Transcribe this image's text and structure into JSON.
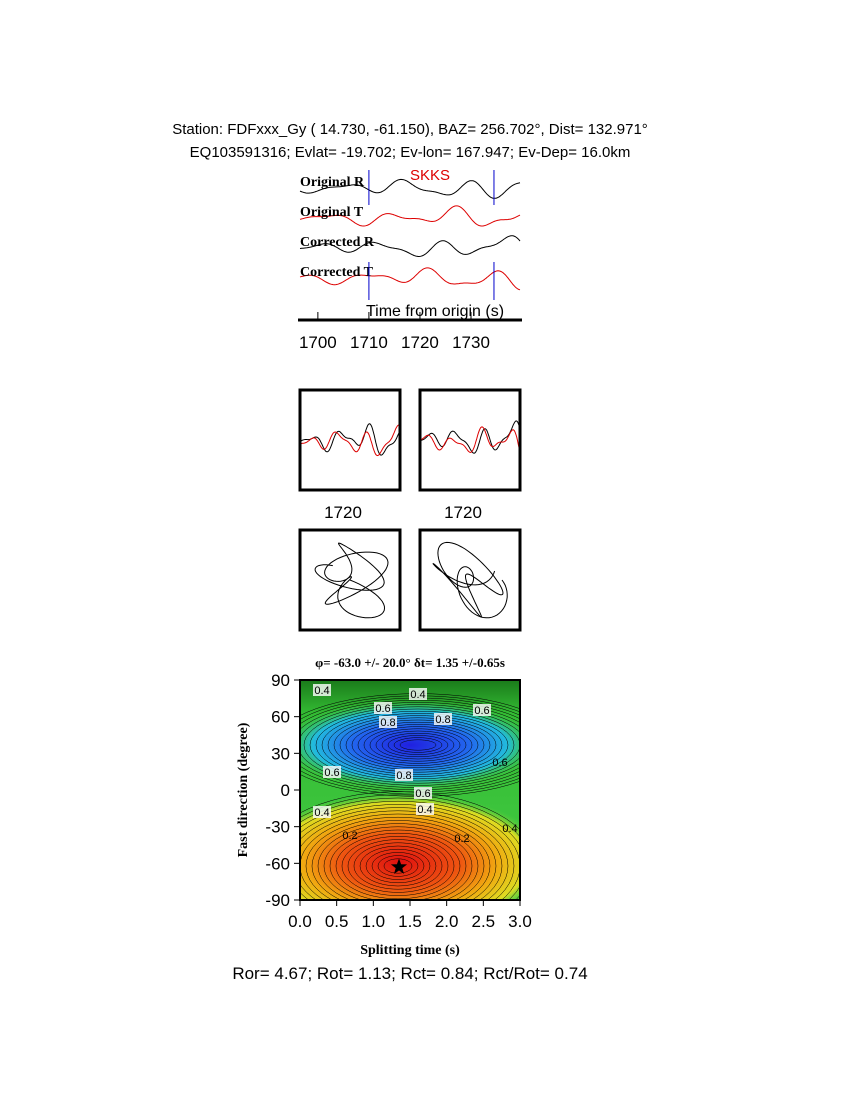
{
  "header": {
    "line1": "Station: FDFxxx_Gy (  14.730,  -61.150), BAZ=  256.702°, Dist=  132.971°",
    "line2": "EQ103591316; Evlat= -19.702; Ev-lon= 167.947; Ev-Dep= 16.0km"
  },
  "traces": {
    "phase": "SKKS",
    "labels": [
      "Original R",
      "Original T",
      "Corrected R",
      "Corrected T"
    ],
    "xlabel": "Time from origin (s)",
    "xlim": [
      1696.5,
      1739.6
    ],
    "xticks": [
      1700,
      1710,
      1720,
      1730
    ],
    "window": [
      1710,
      1734.5
    ]
  },
  "panels": {
    "xticks": [
      1720,
      1720
    ]
  },
  "contour": {
    "title": "φ= -63.0 +/- 20.0° δt= 1.35 +/-0.65s",
    "xlabel": "Splitting time (s)",
    "ylabel": "Fast direction (degree)",
    "xlim": [
      0,
      3
    ],
    "ylim": [
      -90,
      90
    ],
    "xticks": [
      {
        "value": 0,
        "label": "0.0"
      },
      {
        "value": 0.5,
        "label": "0.5"
      },
      {
        "value": 1,
        "label": "1.0"
      },
      {
        "value": 1.5,
        "label": "1.5"
      },
      {
        "value": 2,
        "label": "2.0"
      },
      {
        "value": 2.5,
        "label": "2.5"
      },
      {
        "value": 3,
        "label": "3.0"
      }
    ],
    "yticks": [
      -90,
      -60,
      -30,
      0,
      30,
      60,
      90
    ],
    "best": [
      1.35,
      -63
    ],
    "level_labels": [
      "0.4",
      "0.4",
      "0.6",
      "0.6",
      "0.6",
      "0.8",
      "0.8",
      "0.8",
      "0.6",
      "0.4",
      "0.4",
      "0.2",
      "0.2",
      "0.4",
      "0.6"
    ]
  },
  "footer": "Ror= 4.67; Rot= 1.13; Rct= 0.84; Rct/Rot= 0.74"
}
